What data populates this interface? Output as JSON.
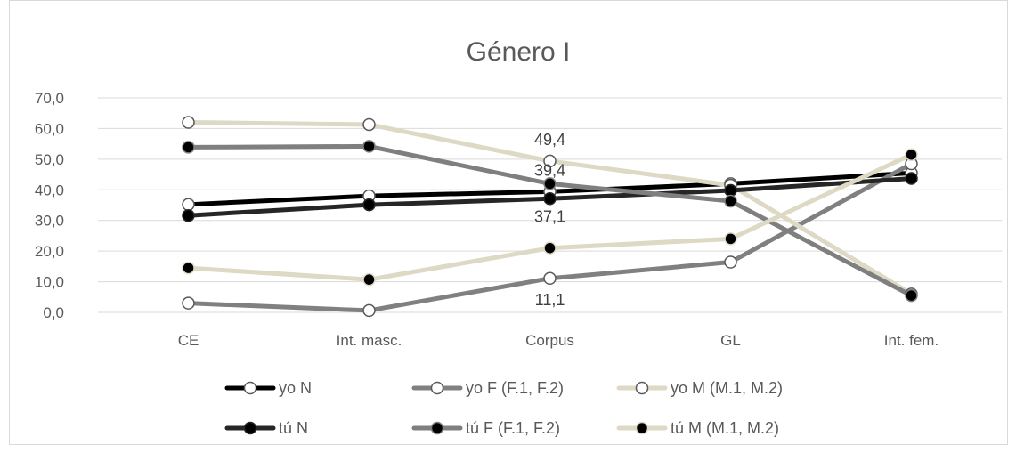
{
  "chart_data": {
    "type": "line",
    "title": "Género I",
    "categories": [
      "CE",
      "Int. masc.",
      "Corpus",
      "GL",
      "Int. fem."
    ],
    "ylim": [
      0,
      70
    ],
    "yticks": [
      "0,0",
      "10,0",
      "20,0",
      "30,0",
      "40,0",
      "50,0",
      "60,0",
      "70,0"
    ],
    "grid": true,
    "legend_position": "bottom",
    "series": [
      {
        "name": "yo N",
        "values": [
          35.2,
          38.0,
          39.4,
          42.0,
          45.5
        ],
        "color": "#000000",
        "marker": "open"
      },
      {
        "name": "yo F (F.1, F.2)",
        "values": [
          3.0,
          0.6,
          11.1,
          16.4,
          48.5
        ],
        "color": "#808080",
        "marker": "open"
      },
      {
        "name": "yo M (M.1, M.2)",
        "values": [
          62.0,
          61.3,
          49.4,
          41.5,
          6.0
        ],
        "color": "#ddd9c4",
        "marker": "open"
      },
      {
        "name": "tú N",
        "values": [
          31.6,
          35.1,
          37.1,
          39.8,
          43.7
        ],
        "color": "#262626",
        "marker": "filled"
      },
      {
        "name": "tú F (F.1, F.2)",
        "values": [
          53.9,
          54.2,
          42.0,
          36.3,
          5.5
        ],
        "color": "#7f7f7f",
        "marker": "filled"
      },
      {
        "name": "tú M (M.1, M.2)",
        "values": [
          14.5,
          10.7,
          21.0,
          24.0,
          51.5
        ],
        "color": "#ddd9c4",
        "marker": "filled"
      }
    ],
    "data_labels": [
      {
        "series": "yo M (M.1, M.2)",
        "category": "Corpus",
        "text": "49,4"
      },
      {
        "series": "yo N",
        "category": "Corpus",
        "text": "39,4"
      },
      {
        "series": "tú N",
        "category": "Corpus",
        "text": "37,1"
      },
      {
        "series": "yo F (F.1, F.2)",
        "category": "Corpus",
        "text": "11,1"
      }
    ]
  }
}
